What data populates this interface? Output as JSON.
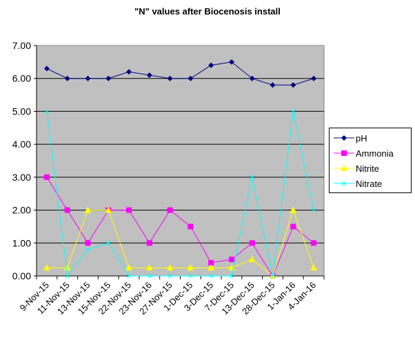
{
  "chart_data": {
    "type": "line",
    "title": "\"N\" values after Biocenosis install",
    "xlabel": "",
    "ylabel": "",
    "ylim": [
      0,
      7
    ],
    "yticks": [
      "0.00",
      "1.00",
      "2.00",
      "3.00",
      "4.00",
      "5.00",
      "6.00",
      "7.00"
    ],
    "grid": true,
    "legend_position": "right",
    "plot_background": "#C0C0C0",
    "categories": [
      "9-Nov-15",
      "11-Nov-15",
      "13-Nov-15",
      "15-Nov-15",
      "22-Nov-15",
      "23-Nov-16",
      "27-Nov-15",
      "1-Dec-15",
      "3-Dec-15",
      "7-Dec-15",
      "13-Dec-15",
      "28-Dec-15",
      "1-Jan-16",
      "4-Jan-16"
    ],
    "series": [
      {
        "name": "pH",
        "color": "#000080",
        "marker": "diamond",
        "values": [
          6.3,
          6.0,
          6.0,
          6.0,
          6.2,
          6.1,
          6.0,
          6.0,
          6.4,
          6.5,
          6.0,
          5.8,
          5.8,
          6.0
        ]
      },
      {
        "name": "Ammonia",
        "color": "#FF00FF",
        "marker": "square",
        "values": [
          3.0,
          2.0,
          1.0,
          2.0,
          2.0,
          1.0,
          2.0,
          1.5,
          0.4,
          0.5,
          1.0,
          0.0,
          1.5,
          1.0
        ]
      },
      {
        "name": "Nitrite",
        "color": "#FFFF00",
        "marker": "triangle",
        "values": [
          0.25,
          0.25,
          2.0,
          2.0,
          0.25,
          0.25,
          0.25,
          0.25,
          0.25,
          0.25,
          0.5,
          0.0,
          2.0,
          0.25
        ]
      },
      {
        "name": "Nitrate",
        "color": "#00FFFF",
        "marker": "x",
        "values": [
          5.0,
          0.0,
          0.8,
          1.0,
          0.0,
          0.0,
          0.0,
          0.0,
          0.0,
          0.0,
          3.0,
          0.0,
          5.0,
          2.0
        ]
      }
    ]
  }
}
